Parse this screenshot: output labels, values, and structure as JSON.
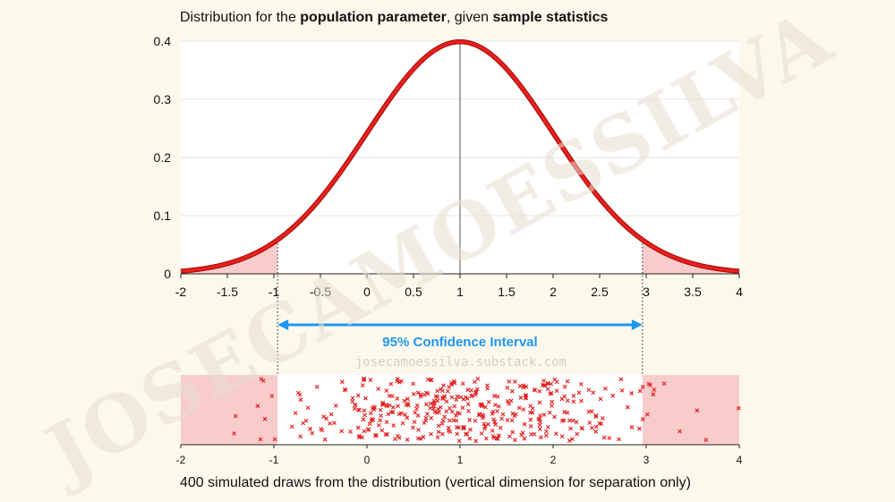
{
  "title": {
    "prefix": "Distribution for the ",
    "bold1": "population parameter",
    "middle": ", given ",
    "bold2": "sample statistics"
  },
  "caption": "400 simulated draws from the distribution (vertical dimension for separation only)",
  "ci_label": "95% Confidence Interval",
  "watermark": {
    "big": "JOSECAMOESSILVA",
    "url": "josecamoessilva.substack.com"
  },
  "colors": {
    "curve": "#e8201c",
    "tail_fill": "#f9cccc",
    "ci_arrow": "#1e96f0",
    "points": "#e21a1a",
    "watermark": "#e6dfcf"
  },
  "chart_data": [
    {
      "type": "line",
      "description_series": "normal density, mean 1, sd 1",
      "mean": 1,
      "sd": 1,
      "xlim": [
        -2,
        4
      ],
      "ylim": [
        0,
        0.4
      ],
      "x_ticks": [
        "-2",
        "-1.5",
        "-1",
        "-0.5",
        "0",
        "0.5",
        "1",
        "1.5",
        "2",
        "2.5",
        "3",
        "3.5",
        "4"
      ],
      "y_ticks": [
        "0",
        "0.1",
        "0.2",
        "0.3",
        "0.4"
      ],
      "shaded_tails": {
        "lower": -0.96,
        "upper": 2.96
      },
      "mean_line": 1,
      "grid": "horizontal"
    },
    {
      "type": "scatter",
      "n_draws": 400,
      "xlim": [
        -2,
        4
      ],
      "x_ticks": [
        "-2",
        "-1",
        "0",
        "1",
        "2",
        "3",
        "4"
      ],
      "confidence_interval": [
        -0.96,
        2.96
      ],
      "shaded_outside_ci": true
    }
  ]
}
